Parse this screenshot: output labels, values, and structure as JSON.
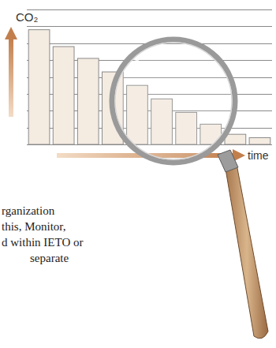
{
  "chart_data": {
    "type": "bar",
    "y_label": "CO₂",
    "x_label": "time",
    "categories": [
      null,
      null,
      null,
      null,
      null,
      null,
      null,
      null,
      null,
      null
    ],
    "values": [
      6.8,
      5.8,
      5.1,
      4.3,
      3.5,
      2.7,
      1.9,
      1.2,
      0.6,
      0.4
    ],
    "color": "#f4ebe1",
    "ylim": [
      0,
      8
    ],
    "yticks": [
      0,
      1,
      2,
      3,
      4,
      5,
      6,
      7,
      8
    ],
    "grid": true,
    "tick_labels": false
  },
  "page_text": [
    "rganization",
    "this, Monitor,",
    "d within IETO or",
    "separate"
  ]
}
